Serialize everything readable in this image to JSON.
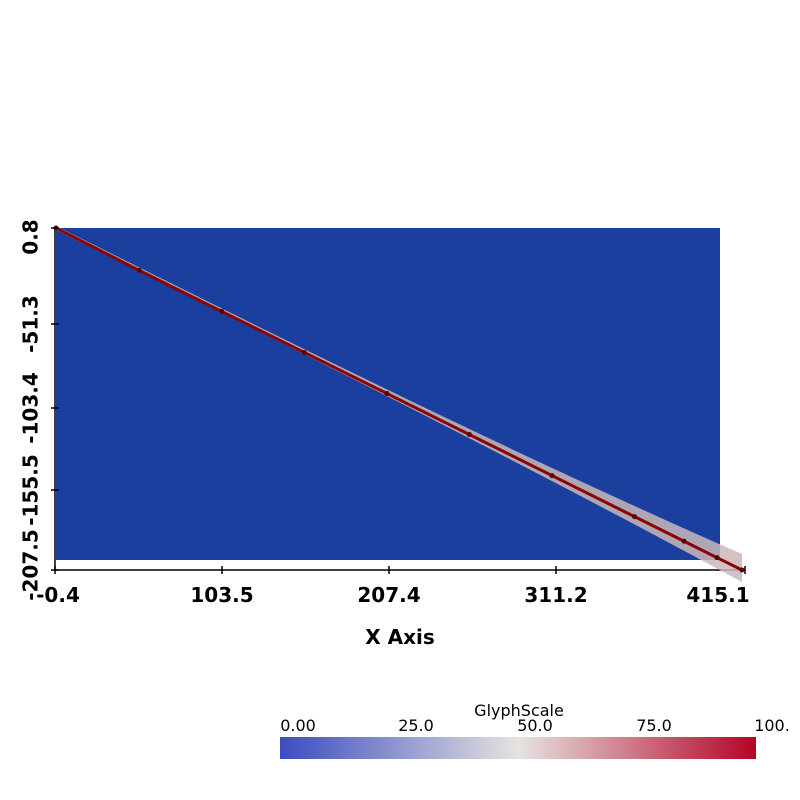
{
  "chart_data": {
    "type": "scatter",
    "xlabel": "X Axis",
    "ylabel": "",
    "xlim": [
      -0.4,
      415.1
    ],
    "ylim": [
      -207.5,
      0.8
    ],
    "xticks": [
      "-0.4",
      "103.5",
      "207.4",
      "311.2",
      "415.1"
    ],
    "yticks": [
      "0.8",
      "-51.3",
      "-103.4",
      "-155.5",
      "-207.5"
    ],
    "background_color": "#1b3f9e",
    "line_color": "#8b0000",
    "series": [
      {
        "x": [
          -0.4,
          50,
          100,
          150,
          200,
          250,
          300,
          350,
          380,
          400,
          415.1
        ],
        "y": [
          0.8,
          -25,
          -50,
          -75,
          -100,
          -125,
          -150,
          -175,
          -190,
          -200,
          -207.5
        ]
      }
    ],
    "colorbar": {
      "title": "GlyphScale",
      "tick_labels": [
        "0.00",
        "25.0",
        "50.0",
        "75.0",
        "100."
      ],
      "range": [
        0,
        100
      ],
      "colors": [
        "#3b4cc0",
        "#dddddd",
        "#b40426"
      ]
    }
  }
}
